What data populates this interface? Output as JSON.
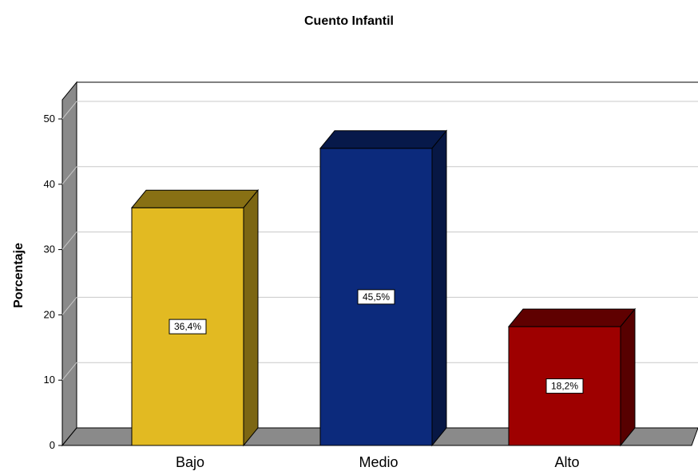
{
  "chart_data": {
    "type": "bar",
    "title": "Cuento Infantil",
    "xlabel": "",
    "ylabel": "Porcentaje",
    "categories": [
      "Bajo",
      "Medio",
      "Alto"
    ],
    "values": [
      36.4,
      45.5,
      18.2
    ],
    "data_labels": [
      "36,4%",
      "45,5%",
      "18,2%"
    ],
    "colors": [
      "#E2BA22",
      "#0C2A7C",
      "#9E0000"
    ],
    "yticks": [
      "0",
      "10",
      "20",
      "30",
      "40",
      "50"
    ],
    "ylim": [
      0,
      50
    ],
    "grid": true,
    "style": "3d"
  }
}
